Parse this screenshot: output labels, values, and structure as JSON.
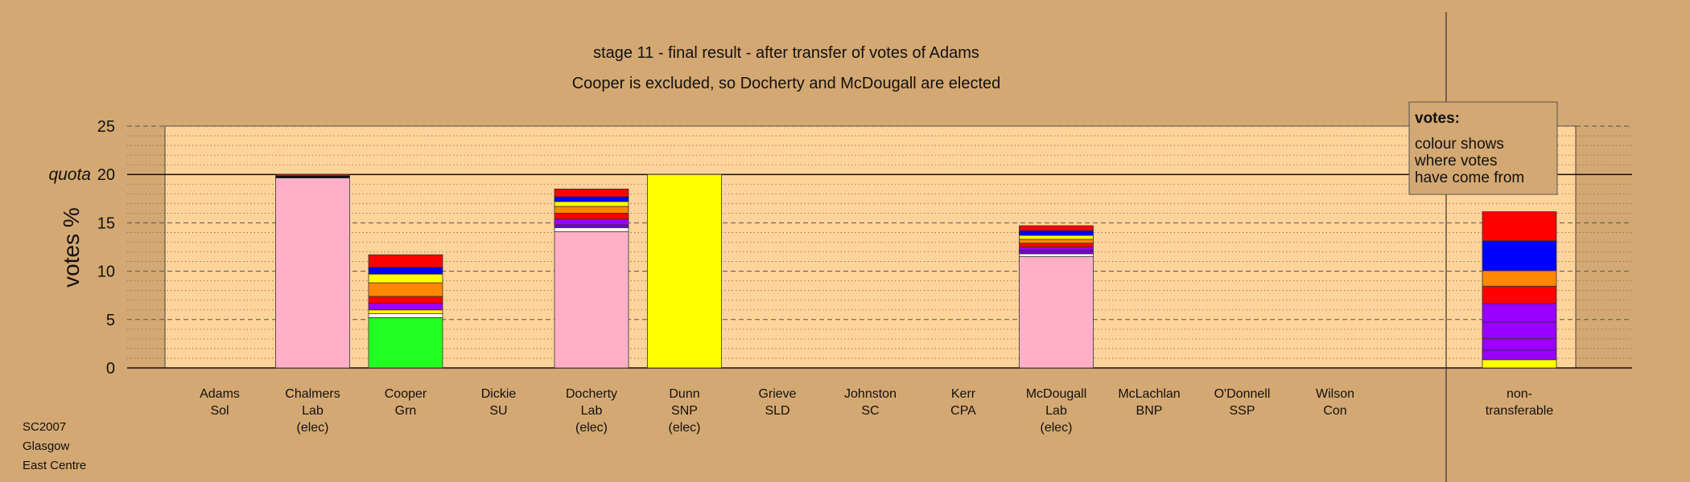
{
  "chart_data": {
    "type": "bar",
    "title": "stage 11 - final result - after transfer of votes of Adams",
    "subtitle": "Cooper is excluded, so Docherty and McDougall are elected",
    "ylabel": "votes %",
    "ylim": [
      0,
      25
    ],
    "yticks": [
      0,
      5,
      10,
      15,
      20,
      25
    ],
    "quota": 20,
    "quota_label": "quota",
    "grid": true,
    "categories": [
      {
        "name": "Adams",
        "party": "Sol",
        "status": ""
      },
      {
        "name": "Chalmers",
        "party": "Lab",
        "status": "(elec)"
      },
      {
        "name": "Cooper",
        "party": "Grn",
        "status": ""
      },
      {
        "name": "Dickie",
        "party": "SU",
        "status": ""
      },
      {
        "name": "Docherty",
        "party": "Lab",
        "status": "(elec)"
      },
      {
        "name": "Dunn",
        "party": "SNP",
        "status": "(elec)"
      },
      {
        "name": "Grieve",
        "party": "SLD",
        "status": ""
      },
      {
        "name": "Johnston",
        "party": "SC",
        "status": ""
      },
      {
        "name": "Kerr",
        "party": "CPA",
        "status": ""
      },
      {
        "name": "McDougall",
        "party": "Lab",
        "status": "(elec)"
      },
      {
        "name": "McLachlan",
        "party": "BNP",
        "status": ""
      },
      {
        "name": "O'Donnell",
        "party": "SSP",
        "status": ""
      },
      {
        "name": "Wilson",
        "party": "Con",
        "status": ""
      }
    ],
    "nontransferable_label": [
      "non-",
      "transferable"
    ],
    "bars": [
      [],
      [
        {
          "value": 19.65,
          "color": "#ffb0c8"
        },
        {
          "value": 0.2,
          "color": "#000000"
        },
        {
          "value": 0.15,
          "color": "#ff0000"
        }
      ],
      [
        {
          "value": 5.2,
          "color": "#22ff22"
        },
        {
          "value": 0.4,
          "color": "#ffffff"
        },
        {
          "value": 0.4,
          "color": "#ffff00"
        },
        {
          "value": 0.7,
          "color": "#9900ff"
        },
        {
          "value": 0.7,
          "color": "#ff0000"
        },
        {
          "value": 1.4,
          "color": "#ff8800"
        },
        {
          "value": 0.9,
          "color": "#ffff00"
        },
        {
          "value": 0.7,
          "color": "#0000ff"
        },
        {
          "value": 1.3,
          "color": "#ff0000"
        }
      ],
      [],
      [
        {
          "value": 14.1,
          "color": "#ffb0c8"
        },
        {
          "value": 0.4,
          "color": "#ffffff"
        },
        {
          "value": 0.3,
          "color": "#7700cc"
        },
        {
          "value": 0.6,
          "color": "#9900ff"
        },
        {
          "value": 0.6,
          "color": "#ff0000"
        },
        {
          "value": 0.7,
          "color": "#ff8800"
        },
        {
          "value": 0.5,
          "color": "#ffff00"
        },
        {
          "value": 0.5,
          "color": "#0000ff"
        },
        {
          "value": 0.8,
          "color": "#ff0000"
        }
      ],
      [
        {
          "value": 20.0,
          "color": "#ffff00"
        }
      ],
      [],
      [],
      [],
      [
        {
          "value": 11.5,
          "color": "#ffb0c8"
        },
        {
          "value": 0.3,
          "color": "#ffffff"
        },
        {
          "value": 0.4,
          "color": "#7700cc"
        },
        {
          "value": 0.3,
          "color": "#9900ff"
        },
        {
          "value": 0.4,
          "color": "#ff0000"
        },
        {
          "value": 0.4,
          "color": "#ff8800"
        },
        {
          "value": 0.4,
          "color": "#ffff00"
        },
        {
          "value": 0.5,
          "color": "#0000ff"
        },
        {
          "value": 0.5,
          "color": "#ff0000"
        }
      ],
      [],
      [],
      []
    ],
    "nontransferable": [
      {
        "value": 0.85,
        "color": "#ffff00"
      },
      {
        "value": 1.0,
        "color": "#9900ff"
      },
      {
        "value": 1.2,
        "color": "#9900ff"
      },
      {
        "value": 1.7,
        "color": "#9900ff"
      },
      {
        "value": 1.9,
        "color": "#9900ff"
      },
      {
        "value": 1.8,
        "color": "#ff0000"
      },
      {
        "value": 1.6,
        "color": "#ff8800"
      },
      {
        "value": 3.1,
        "color": "#0000ff"
      },
      {
        "value": 3.0,
        "color": "#ff0000"
      }
    ],
    "legend": {
      "title": "votes:",
      "lines": [
        "colour shows",
        "where votes",
        "have come from"
      ],
      "position": "top-right"
    }
  },
  "footer": {
    "line1": "SC2007",
    "line2": "Glasgow",
    "line3": "East Centre"
  },
  "colors": {
    "background": "#d4a872",
    "plot_area": "#ffd49a",
    "legend_bg": "#d4a872"
  }
}
